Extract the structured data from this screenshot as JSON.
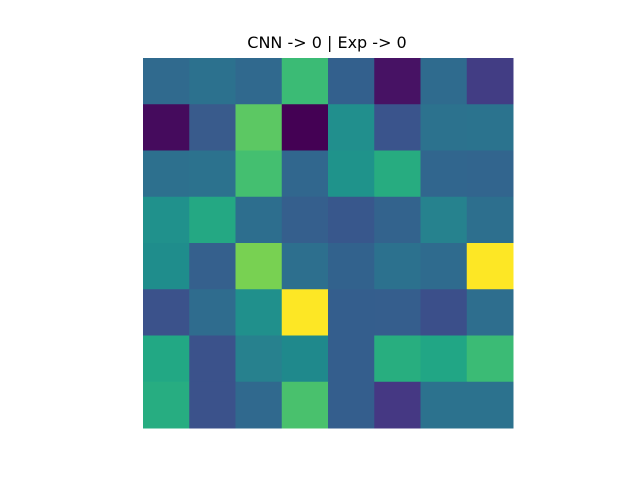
{
  "chart_data": {
    "type": "heatmap",
    "title": "CNN -> 0 | Exp -> 0",
    "rows": 8,
    "cols": 8,
    "grid": false,
    "axes_visible": false,
    "colormap": "viridis",
    "colors": [
      [
        "#306a8e",
        "#2c718e",
        "#30698e",
        "#3bbb75",
        "#33608d",
        "#471264",
        "#2f6b8e",
        "#423d84"
      ],
      [
        "#450b5d",
        "#395b8c",
        "#5cc863",
        "#440154",
        "#218f8d",
        "#3a548c",
        "#2c728e",
        "#2b738e"
      ],
      [
        "#2d708e",
        "#2c728e",
        "#44bf70",
        "#31678e",
        "#1f938b",
        "#27ac80",
        "#31668e",
        "#32658e"
      ],
      [
        "#20918c",
        "#24a883",
        "#2d6e8e",
        "#355f8d",
        "#38578c",
        "#33638d",
        "#26828e",
        "#2d6f8e"
      ],
      [
        "#1f8d8c",
        "#35608d",
        "#78d152",
        "#2d6f8e",
        "#32628d",
        "#2c718e",
        "#2f6b8e",
        "#fde725"
      ],
      [
        "#3b528b",
        "#2f6c8e",
        "#20908c",
        "#fde725",
        "#345e8d",
        "#355e8d",
        "#3b4f8a",
        "#2e6e8e"
      ],
      [
        "#22a884",
        "#3b528b",
        "#27818e",
        "#1f898c",
        "#345e8d",
        "#28ae7f",
        "#21a685",
        "#3bbb75"
      ],
      [
        "#27ad81",
        "#3b528b",
        "#30698e",
        "#49c16d",
        "#345e8d",
        "#453883",
        "#2c728e",
        "#2c728e"
      ]
    ]
  }
}
